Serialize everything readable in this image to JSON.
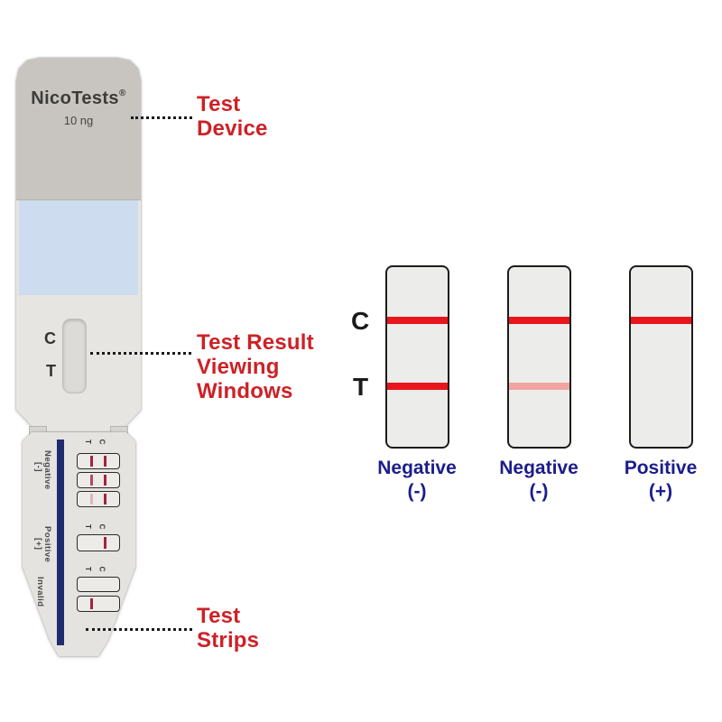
{
  "device": {
    "brand": "NicoTests",
    "trademark": "®",
    "concentration": "10 ng",
    "result_window": {
      "c_label": "C",
      "t_label": "T"
    },
    "strip_card": {
      "groups": [
        {
          "name": "Negative",
          "sign": "[-]",
          "t_label": "T",
          "c_label": "C"
        },
        {
          "name": "Positive",
          "sign": "[+]",
          "t_label": "T",
          "c_label": "C"
        },
        {
          "name": "Invalid",
          "sign": "",
          "t_label": "T",
          "c_label": "C"
        }
      ]
    }
  },
  "annotations": {
    "device": {
      "lines": [
        "Test",
        "Device"
      ]
    },
    "windows": {
      "lines": [
        "Test Result",
        "Viewing",
        "Windows"
      ]
    },
    "strips": {
      "lines": [
        "Test",
        "Strips"
      ]
    }
  },
  "results_panel": {
    "c_label": "C",
    "t_label": "T",
    "strips": [
      {
        "caption": "Negative",
        "sign": "(-)",
        "c_line": "strong",
        "t_line": "strong"
      },
      {
        "caption": "Negative",
        "sign": "(-)",
        "c_line": "strong",
        "t_line": "faint"
      },
      {
        "caption": "Positive",
        "sign": "(+)",
        "c_line": "strong",
        "t_line": "absent"
      }
    ]
  },
  "colors": {
    "label-red": "#cd2127",
    "caption-blue": "#1c1d8a",
    "line-red": "#e8151d",
    "line-faint": "#f0a5a2",
    "strip-navy": "#1f2c6d",
    "device-top": "#c8c5c0",
    "device-body": "#e6e5e2",
    "sample-blue": "#cddcee"
  }
}
